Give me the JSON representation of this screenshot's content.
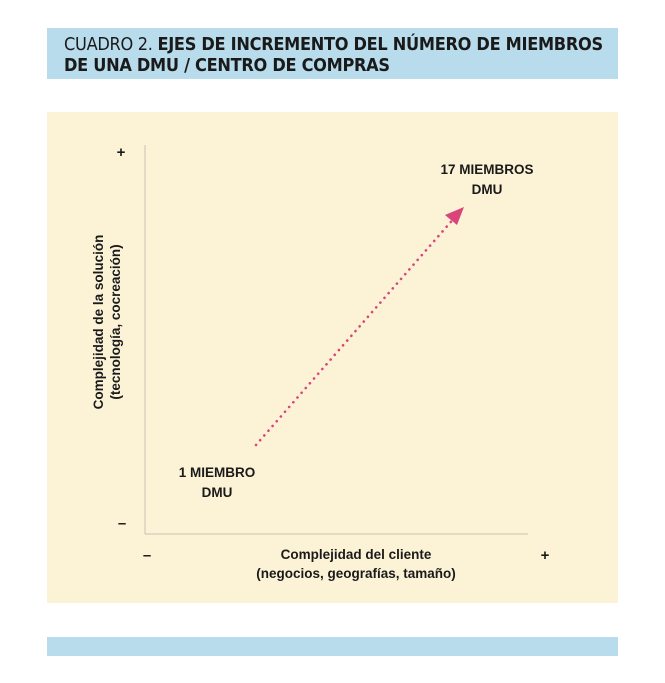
{
  "header": {
    "title_lead": "CUADRO 2. ",
    "title_line1": "EJES DE INCREMENTO DEL NÚMERO DE MIEMBROS",
    "title_line2": "DE UNA DMU / CENTRO DE COMPRAS"
  },
  "diagram": {
    "y_axis_line1": "Complejidad de la solución",
    "y_axis_line2": "(tecnología, cocreación)",
    "x_axis_line1": "Complejidad del cliente",
    "x_axis_line2": "(negocios, geografías, tamaño)",
    "y_plus": "+",
    "y_minus": "–",
    "x_minus": "–",
    "x_plus": "+",
    "start_line1": "1 MIEMBRO",
    "start_line2": "DMU",
    "end_line1": "17 MIEMBROS",
    "end_line2": "DMU",
    "arrow_color": "#d9457a"
  },
  "colors": {
    "header_bg": "#b9dcec",
    "panel_bg": "#fcf3d6"
  }
}
